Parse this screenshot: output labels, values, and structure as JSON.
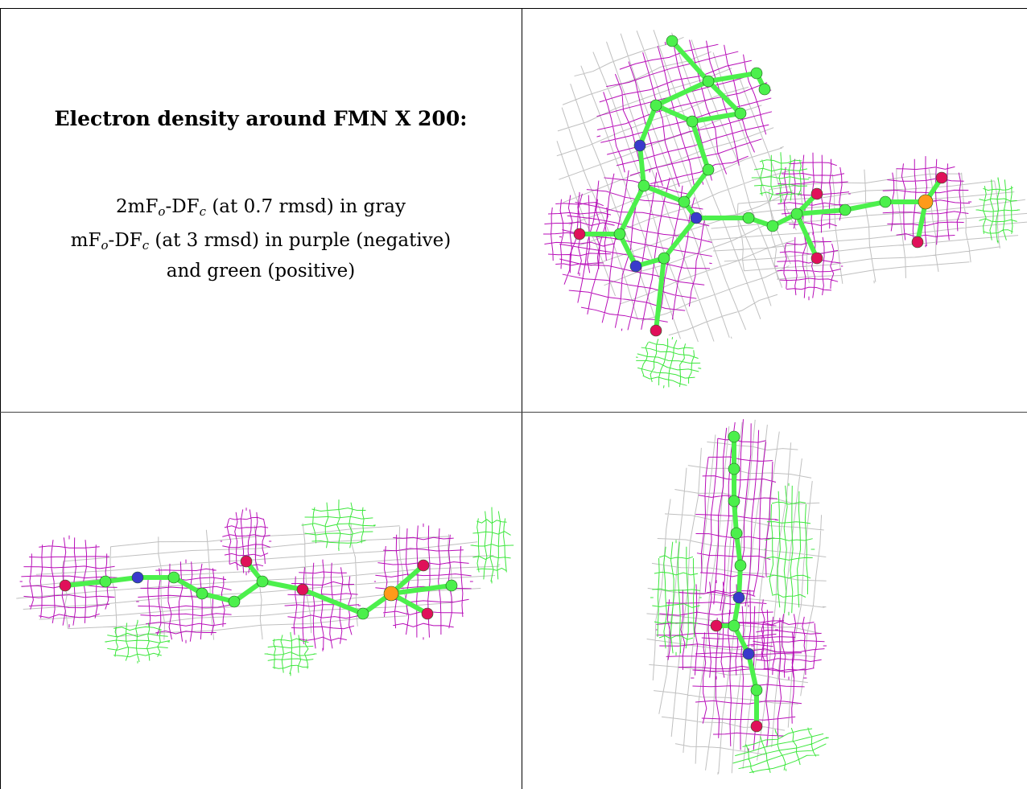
{
  "caption": {
    "title": "Electron density around FMN X 200:",
    "line1": {
      "a": "2mF",
      "a_sub": "o",
      "b": "-DF",
      "b_sub": "c",
      "rest": " (at 0.7 rmsd) in gray"
    },
    "line2": {
      "a": "mF",
      "a_sub": "o",
      "b": "-DF",
      "b_sub": "c",
      "rest": " (at 3 rmsd) in purple (negative)"
    },
    "line3": "and green (positive)"
  },
  "colors": {
    "mesh_2fofc": "#bdbdbd",
    "mesh_negative": "#b400b4",
    "mesh_positive": "#33e633",
    "carbon": "#4cf04c",
    "nitrogen": "#3a3acc",
    "oxygen": "#e0105a",
    "phosphorus": "#ff9a1a"
  },
  "panels": [
    {
      "name": "top-right",
      "icon": "fmn-density-view-1"
    },
    {
      "name": "bottom-left",
      "icon": "fmn-density-view-2"
    },
    {
      "name": "bottom-right",
      "icon": "fmn-density-view-3"
    }
  ]
}
